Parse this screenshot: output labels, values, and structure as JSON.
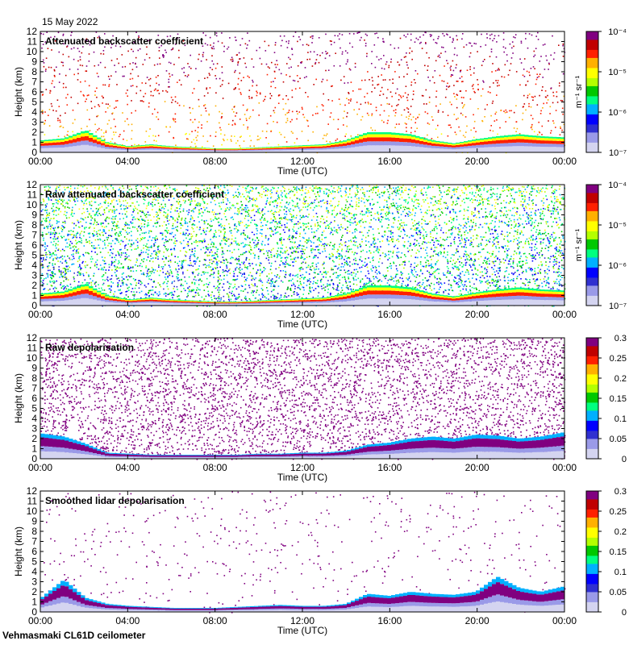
{
  "date": "15 May 2022",
  "site": "Vehmasmaki CL61D ceilometer",
  "colors": {
    "spectral": [
      "#d4d4f0",
      "#9a9ae8",
      "#3030d0",
      "#0000ff",
      "#00b0ff",
      "#00ff80",
      "#00c800",
      "#b4ff00",
      "#ffff00",
      "#ffb000",
      "#ff2000",
      "#c00000",
      "#800080"
    ]
  },
  "chart_data": [
    {
      "type": "heatmap",
      "title": "Attenuated backscatter coefficient",
      "xlabel": "Time (UTC)",
      "ylabel": "Height (km)",
      "x_ticks": [
        "00:00",
        "04:00",
        "08:00",
        "12:00",
        "16:00",
        "20:00",
        "00:00"
      ],
      "y_ticks": [
        "0",
        "1",
        "2",
        "3",
        "4",
        "5",
        "6",
        "7",
        "8",
        "9",
        "10",
        "11",
        "12"
      ],
      "ylim": [
        0,
        12
      ],
      "colorbar": {
        "scale": "log",
        "ticks": [
          "10⁻⁷",
          "10⁻⁶",
          "10⁻⁵",
          "10⁻⁴"
        ],
        "unit": "m⁻¹ sr⁻¹"
      },
      "boundary_layer_top_km": [
        1.2,
        1.4,
        2.2,
        1.0,
        0.6,
        0.8,
        0.6,
        0.5,
        0.4,
        0.4,
        0.5,
        0.6,
        0.7,
        0.8,
        1.2,
        2.0,
        2.0,
        1.8,
        1.2,
        0.9,
        1.3,
        1.6,
        1.8,
        1.6,
        1.5
      ],
      "noise": {
        "density": 0.18,
        "max_height_km": 12,
        "high_values": true
      }
    },
    {
      "type": "heatmap",
      "title": "Raw attenuated backscatter coefficient",
      "xlabel": "Time (UTC)",
      "ylabel": "Height (km)",
      "x_ticks": [
        "00:00",
        "04:00",
        "08:00",
        "12:00",
        "16:00",
        "20:00",
        "00:00"
      ],
      "y_ticks": [
        "0",
        "1",
        "2",
        "3",
        "4",
        "5",
        "6",
        "7",
        "8",
        "9",
        "10",
        "11",
        "12"
      ],
      "ylim": [
        0,
        12
      ],
      "colorbar": {
        "scale": "log",
        "ticks": [
          "10⁻⁷",
          "10⁻⁶",
          "10⁻⁵",
          "10⁻⁴"
        ],
        "unit": "m⁻¹ sr⁻¹"
      },
      "boundary_layer_top_km": [
        1.2,
        1.4,
        2.2,
        1.0,
        0.6,
        0.8,
        0.6,
        0.5,
        0.4,
        0.4,
        0.5,
        0.6,
        0.7,
        0.8,
        1.2,
        2.0,
        2.0,
        1.8,
        1.2,
        0.9,
        1.3,
        1.6,
        1.8,
        1.6,
        1.5
      ],
      "noise": {
        "density": 0.75,
        "max_height_km": 12,
        "high_values": false
      }
    },
    {
      "type": "heatmap",
      "title": "Raw depolarisation",
      "xlabel": "Time (UTC)",
      "ylabel": "Height (km)",
      "x_ticks": [
        "00:00",
        "04:00",
        "08:00",
        "12:00",
        "16:00",
        "20:00",
        "00:00"
      ],
      "y_ticks": [
        "0",
        "1",
        "2",
        "3",
        "4",
        "5",
        "6",
        "7",
        "8",
        "9",
        "10",
        "11",
        "12"
      ],
      "ylim": [
        0,
        12
      ],
      "colorbar": {
        "scale": "linear",
        "ticks": [
          "0",
          "0.05",
          "0.1",
          "0.15",
          "0.2",
          "0.25",
          "0.3"
        ],
        "vmin": 0,
        "vmax": 0.3
      },
      "boundary_layer_top_km": [
        2.5,
        2.2,
        1.5,
        0.6,
        0.5,
        0.4,
        0.4,
        0.4,
        0.4,
        0.4,
        0.5,
        0.5,
        0.6,
        0.6,
        0.8,
        1.4,
        1.6,
        2.0,
        2.2,
        2.0,
        2.4,
        2.3,
        2.0,
        2.2,
        2.6
      ],
      "noise": {
        "density": 0.55,
        "max_height_km": 12,
        "high_values": true
      }
    },
    {
      "type": "heatmap",
      "title": "Smoothed lidar depolarisation",
      "xlabel": "Time (UTC)",
      "ylabel": "Height (km)",
      "x_ticks": [
        "00:00",
        "04:00",
        "08:00",
        "12:00",
        "16:00",
        "20:00",
        "00:00"
      ],
      "y_ticks": [
        "0",
        "1",
        "2",
        "3",
        "4",
        "5",
        "6",
        "7",
        "8",
        "9",
        "10",
        "11",
        "12"
      ],
      "ylim": [
        0,
        12
      ],
      "colorbar": {
        "scale": "linear",
        "ticks": [
          "0",
          "0.05",
          "0.1",
          "0.15",
          "0.2",
          "0.25",
          "0.3"
        ],
        "vmin": 0,
        "vmax": 0.3
      },
      "boundary_layer_top_km": [
        1.5,
        3.2,
        1.4,
        0.8,
        0.6,
        0.5,
        0.4,
        0.4,
        0.4,
        0.5,
        0.6,
        0.7,
        0.6,
        0.6,
        0.8,
        1.8,
        1.6,
        2.0,
        1.8,
        1.7,
        2.0,
        3.5,
        2.4,
        2.0,
        2.5
      ],
      "noise": {
        "density": 0.06,
        "max_height_km": 12,
        "high_values": true
      }
    }
  ]
}
